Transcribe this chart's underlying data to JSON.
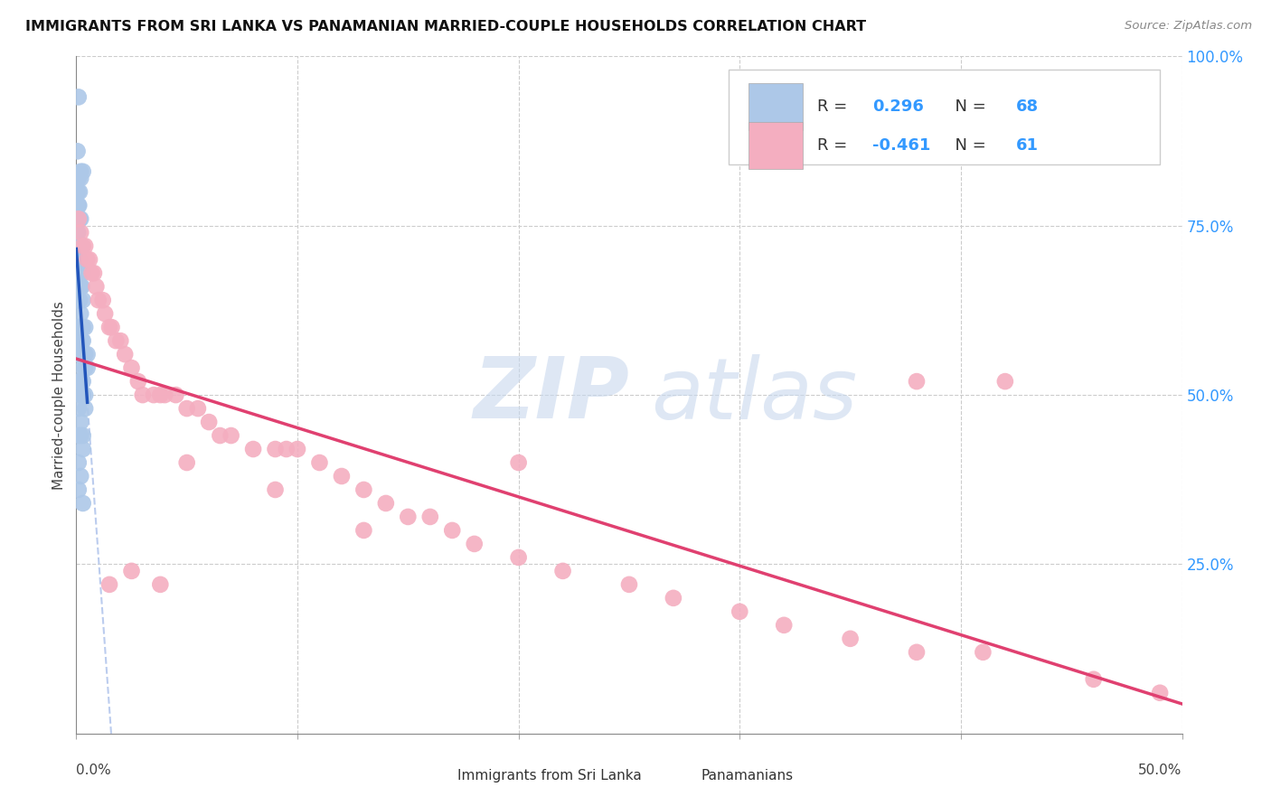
{
  "title": "IMMIGRANTS FROM SRI LANKA VS PANAMANIAN MARRIED-COUPLE HOUSEHOLDS CORRELATION CHART",
  "source": "Source: ZipAtlas.com",
  "ylabel": "Married-couple Households",
  "legend_label1": "Immigrants from Sri Lanka",
  "legend_label2": "Panamanians",
  "r1": "0.296",
  "n1": "68",
  "r2": "-0.461",
  "n2": "61",
  "blue_color": "#adc8e8",
  "pink_color": "#f4aec0",
  "blue_line_color": "#2255bb",
  "pink_line_color": "#e04070",
  "dashed_line_color": "#bbccee",
  "xlim": [
    0.0,
    0.5
  ],
  "ylim": [
    0.0,
    1.0
  ],
  "background_color": "#ffffff",
  "grid_color": "#cccccc",
  "blue_scatter_x": [
    0.001,
    0.0005,
    0.002,
    0.003,
    0.001,
    0.002,
    0.0008,
    0.0015,
    0.001,
    0.0012,
    0.0008,
    0.001,
    0.0015,
    0.002,
    0.0005,
    0.0008,
    0.001,
    0.0015,
    0.002,
    0.0025,
    0.0008,
    0.001,
    0.0015,
    0.0005,
    0.001,
    0.002,
    0.003,
    0.0008,
    0.001,
    0.0015,
    0.002,
    0.0025,
    0.003,
    0.0008,
    0.001,
    0.0015,
    0.002,
    0.003,
    0.004,
    0.001,
    0.0015,
    0.002,
    0.0025,
    0.003,
    0.004,
    0.005,
    0.001,
    0.002,
    0.003,
    0.004,
    0.005,
    0.001,
    0.002,
    0.003,
    0.004,
    0.002,
    0.003,
    0.004,
    0.001,
    0.002,
    0.003,
    0.001,
    0.002,
    0.003,
    0.001,
    0.002,
    0.001,
    0.003
  ],
  "blue_scatter_y": [
    0.94,
    0.86,
    0.83,
    0.83,
    0.82,
    0.82,
    0.8,
    0.8,
    0.78,
    0.78,
    0.76,
    0.76,
    0.76,
    0.76,
    0.74,
    0.74,
    0.72,
    0.72,
    0.72,
    0.72,
    0.7,
    0.7,
    0.7,
    0.68,
    0.68,
    0.68,
    0.68,
    0.66,
    0.66,
    0.66,
    0.66,
    0.66,
    0.64,
    0.64,
    0.64,
    0.64,
    0.62,
    0.6,
    0.6,
    0.6,
    0.6,
    0.58,
    0.58,
    0.58,
    0.56,
    0.56,
    0.56,
    0.56,
    0.54,
    0.54,
    0.54,
    0.52,
    0.52,
    0.52,
    0.5,
    0.5,
    0.5,
    0.48,
    0.48,
    0.46,
    0.44,
    0.44,
    0.44,
    0.42,
    0.4,
    0.38,
    0.36,
    0.34
  ],
  "pink_scatter_x": [
    0.001,
    0.002,
    0.003,
    0.004,
    0.005,
    0.006,
    0.007,
    0.008,
    0.009,
    0.01,
    0.012,
    0.013,
    0.015,
    0.016,
    0.018,
    0.02,
    0.022,
    0.025,
    0.028,
    0.03,
    0.035,
    0.038,
    0.04,
    0.045,
    0.05,
    0.055,
    0.06,
    0.065,
    0.07,
    0.08,
    0.09,
    0.095,
    0.1,
    0.11,
    0.12,
    0.13,
    0.14,
    0.15,
    0.16,
    0.17,
    0.18,
    0.2,
    0.22,
    0.25,
    0.27,
    0.3,
    0.32,
    0.35,
    0.38,
    0.41,
    0.42,
    0.46,
    0.49,
    0.015,
    0.025,
    0.038,
    0.05,
    0.09,
    0.13,
    0.2,
    0.38
  ],
  "pink_scatter_y": [
    0.76,
    0.74,
    0.72,
    0.72,
    0.7,
    0.7,
    0.68,
    0.68,
    0.66,
    0.64,
    0.64,
    0.62,
    0.6,
    0.6,
    0.58,
    0.58,
    0.56,
    0.54,
    0.52,
    0.5,
    0.5,
    0.5,
    0.5,
    0.5,
    0.48,
    0.48,
    0.46,
    0.44,
    0.44,
    0.42,
    0.42,
    0.42,
    0.42,
    0.4,
    0.38,
    0.36,
    0.34,
    0.32,
    0.32,
    0.3,
    0.28,
    0.26,
    0.24,
    0.22,
    0.2,
    0.18,
    0.16,
    0.14,
    0.12,
    0.12,
    0.52,
    0.08,
    0.06,
    0.22,
    0.24,
    0.22,
    0.4,
    0.36,
    0.3,
    0.4,
    0.52
  ]
}
